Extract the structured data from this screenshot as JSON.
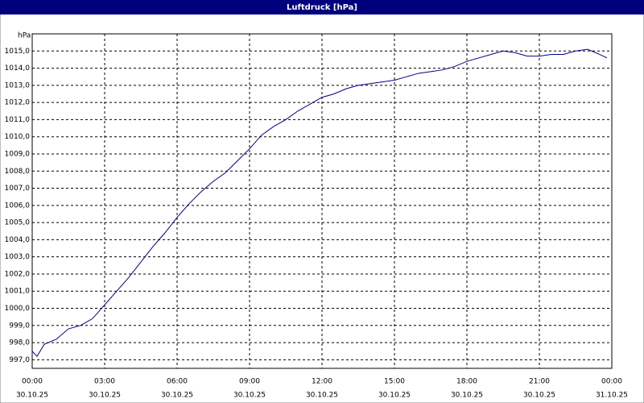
{
  "chart_data": {
    "type": "line",
    "title": "Luftdruck [hPa]",
    "y_label": "hPa",
    "x": [
      0,
      0.2,
      0.5,
      1,
      1.5,
      2,
      2.5,
      3,
      3.5,
      4,
      4.5,
      5,
      5.5,
      6,
      6.5,
      7,
      7.5,
      8,
      8.5,
      9,
      9.5,
      10,
      10.5,
      11,
      11.5,
      12,
      12.5,
      13,
      13.5,
      14,
      14.5,
      15,
      15.5,
      16,
      16.5,
      17,
      17.5,
      18,
      18.5,
      19,
      19.5,
      20,
      20.5,
      21,
      21.5,
      22,
      22.5,
      23,
      23.5,
      23.8
    ],
    "series": [
      {
        "name": "Luftdruck",
        "color": "#00008b",
        "values": [
          997.5,
          997.2,
          997.9,
          998.2,
          998.8,
          999.0,
          999.4,
          1000.2,
          1001.0,
          1001.8,
          1002.7,
          1003.6,
          1004.4,
          1005.3,
          1006.1,
          1006.8,
          1007.4,
          1007.9,
          1008.6,
          1009.3,
          1010.1,
          1010.6,
          1011.0,
          1011.5,
          1011.9,
          1012.3,
          1012.5,
          1012.8,
          1013.0,
          1013.1,
          1013.2,
          1013.3,
          1013.5,
          1013.7,
          1013.8,
          1013.9,
          1014.1,
          1014.4,
          1014.6,
          1014.8,
          1015.0,
          1014.9,
          1014.7,
          1014.7,
          1014.8,
          1014.8,
          1015.0,
          1015.1,
          1014.8,
          1014.6
        ]
      }
    ],
    "xlim": [
      0,
      24
    ],
    "ylim": [
      996.5,
      1016
    ],
    "xticks": [
      {
        "value": 0,
        "label": "00:00",
        "date": "30.10.25"
      },
      {
        "value": 3,
        "label": "03:00",
        "date": "30.10.25"
      },
      {
        "value": 6,
        "label": "06:00",
        "date": "30.10.25"
      },
      {
        "value": 9,
        "label": "09:00",
        "date": "30.10.25"
      },
      {
        "value": 12,
        "label": "12:00",
        "date": "30.10.25"
      },
      {
        "value": 15,
        "label": "15:00",
        "date": "30.10.25"
      },
      {
        "value": 18,
        "label": "18:00",
        "date": "30.10.25"
      },
      {
        "value": 21,
        "label": "21:00",
        "date": "30.10.25"
      },
      {
        "value": 24,
        "label": "00:00",
        "date": "31.10.25"
      }
    ],
    "yticks": [
      {
        "value": 997,
        "label": "997,0"
      },
      {
        "value": 998,
        "label": "998,0"
      },
      {
        "value": 999,
        "label": "999,0"
      },
      {
        "value": 1000,
        "label": "1000,0"
      },
      {
        "value": 1001,
        "label": "1001,0"
      },
      {
        "value": 1002,
        "label": "1002,0"
      },
      {
        "value": 1003,
        "label": "1003,0"
      },
      {
        "value": 1004,
        "label": "1004,0"
      },
      {
        "value": 1005,
        "label": "1005,0"
      },
      {
        "value": 1006,
        "label": "1006,0"
      },
      {
        "value": 1007,
        "label": "1007,0"
      },
      {
        "value": 1008,
        "label": "1008,0"
      },
      {
        "value": 1009,
        "label": "1009,0"
      },
      {
        "value": 1010,
        "label": "1010,0"
      },
      {
        "value": 1011,
        "label": "1011,0"
      },
      {
        "value": 1012,
        "label": "1012,0"
      },
      {
        "value": 1013,
        "label": "1013,0"
      },
      {
        "value": 1014,
        "label": "1014,0"
      },
      {
        "value": 1015,
        "label": "1015,0"
      }
    ],
    "grid": true
  }
}
